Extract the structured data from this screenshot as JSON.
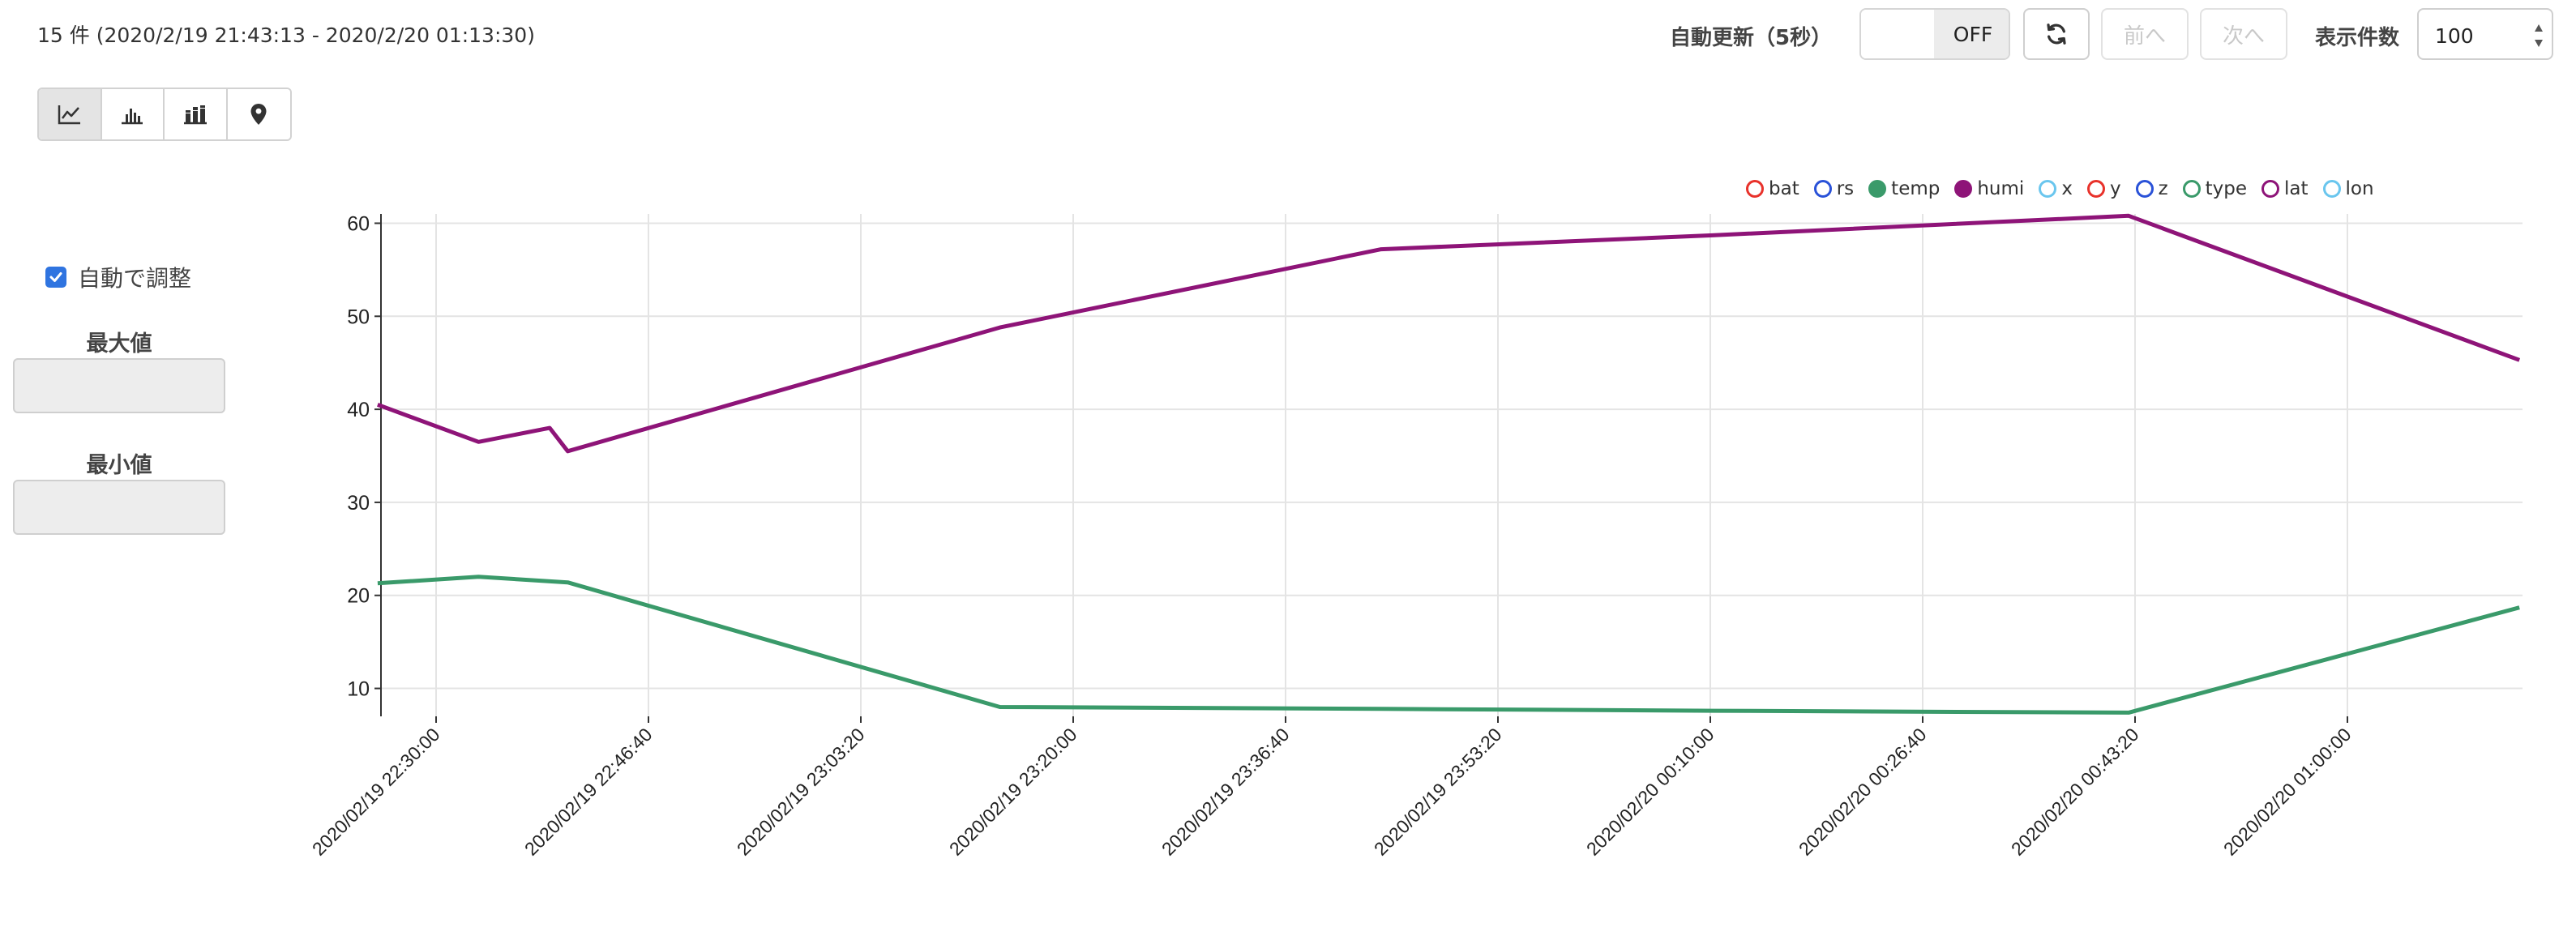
{
  "header": {
    "summary": "15 件 (2020/2/19 21:43:13 - 2020/2/20 01:13:30)",
    "auto_refresh_label": "自動更新（5秒）",
    "toggle_state": "OFF",
    "prev_label": "前へ",
    "next_label": "次へ",
    "count_label": "表示件数",
    "count_value": "100"
  },
  "view_buttons": [
    {
      "icon": "line-chart-icon",
      "active": true
    },
    {
      "icon": "bar-chart-icon",
      "active": false
    },
    {
      "icon": "stacked-bar-chart-icon",
      "active": false
    },
    {
      "icon": "map-marker-icon",
      "active": false
    }
  ],
  "sidebar": {
    "auto_adjust_label": "自動で調整",
    "auto_adjust_checked": true,
    "max_label": "最大値",
    "max_value": "",
    "min_label": "最小値",
    "min_value": ""
  },
  "chart_data": {
    "type": "line",
    "legend_position": "top-right",
    "grid": true,
    "title": "",
    "xlabel": "",
    "ylabel": "",
    "ylim": [
      7,
      61
    ],
    "yticks": [
      10,
      20,
      30,
      40,
      50,
      60
    ],
    "xticks": [
      "2020/02/19 22:30:00",
      "2020/02/19 22:46:40",
      "2020/02/19 23:03:20",
      "2020/02/19 23:20:00",
      "2020/02/19 23:36:40",
      "2020/02/19 23:53:20",
      "2020/02/20 00:10:00",
      "2020/02/20 00:26:40",
      "2020/02/20 00:43:20",
      "2020/02/20 01:00:00"
    ],
    "legend": [
      {
        "name": "bat",
        "color": "#e8322b",
        "filled": false
      },
      {
        "name": "rs",
        "color": "#2a52d8",
        "filled": false
      },
      {
        "name": "temp",
        "color": "#3a9a6a",
        "filled": true
      },
      {
        "name": "humi",
        "color": "#8e1478",
        "filled": true
      },
      {
        "name": "x",
        "color": "#6ac6ee",
        "filled": false
      },
      {
        "name": "y",
        "color": "#e8322b",
        "filled": false
      },
      {
        "name": "z",
        "color": "#2a52d8",
        "filled": false
      },
      {
        "name": "type",
        "color": "#3a9a6a",
        "filled": false
      },
      {
        "name": "lat",
        "color": "#8e1478",
        "filled": false
      },
      {
        "name": "lon",
        "color": "#6ac6ee",
        "filled": false
      }
    ],
    "series": [
      {
        "name": "humi",
        "color": "#8e1478",
        "points": [
          {
            "x": "2020/02/19 22:25:25",
            "y": 40.5
          },
          {
            "x": "2020/02/19 22:33:20",
            "y": 36.5
          },
          {
            "x": "2020/02/19 22:38:55",
            "y": 38.0
          },
          {
            "x": "2020/02/19 22:40:20",
            "y": 35.5
          },
          {
            "x": "2020/02/19 23:14:15",
            "y": 48.8
          },
          {
            "x": "2020/02/19 23:44:10",
            "y": 57.2
          },
          {
            "x": "2020/02/20 00:10:10",
            "y": 58.7
          },
          {
            "x": "2020/02/20 00:42:50",
            "y": 60.8
          },
          {
            "x": "2020/02/20 01:13:30",
            "y": 45.3
          }
        ]
      },
      {
        "name": "temp",
        "color": "#3a9a6a",
        "points": [
          {
            "x": "2020/02/19 22:25:25",
            "y": 21.3
          },
          {
            "x": "2020/02/19 22:33:20",
            "y": 22.0
          },
          {
            "x": "2020/02/19 22:40:20",
            "y": 21.4
          },
          {
            "x": "2020/02/19 23:14:15",
            "y": 8.0
          },
          {
            "x": "2020/02/19 23:44:10",
            "y": 7.8
          },
          {
            "x": "2020/02/20 00:10:10",
            "y": 7.6
          },
          {
            "x": "2020/02/20 00:42:50",
            "y": 7.4
          },
          {
            "x": "2020/02/20 01:13:30",
            "y": 18.7
          }
        ]
      }
    ]
  }
}
